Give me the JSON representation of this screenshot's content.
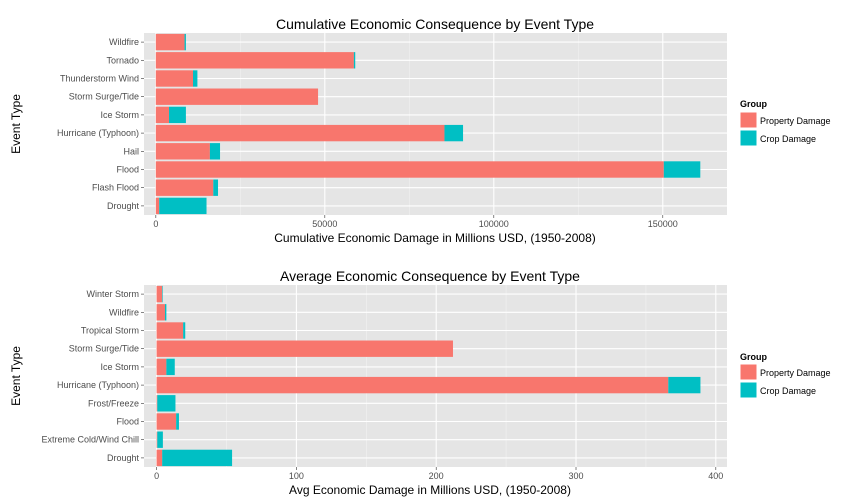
{
  "colors": {
    "panel_bg": "#e5e5e5",
    "grid_major": "#ffffff",
    "grid_minor": "#f2f2f2",
    "property": "#f8766d",
    "crop": "#00bfc4"
  },
  "legend": {
    "title": "Group",
    "items": [
      "Property Damage",
      "Crop Damage"
    ]
  },
  "chart_data": [
    {
      "type": "bar",
      "orientation": "horizontal",
      "stacked": true,
      "title": "Cumulative Economic Consequence by Event Type",
      "xlabel": "Cumulative Economic Damage in Millions USD, (1950-2008)",
      "ylabel": "Event Type",
      "xlim": [
        -3500,
        169000
      ],
      "xticks": [
        0,
        50000,
        100000,
        150000
      ],
      "xtick_labels": [
        "0",
        "50000",
        "100000",
        "150000"
      ],
      "legend_position": "right",
      "grid": true,
      "categories": [
        "Wildfire",
        "Tornado",
        "Thunderstorm Wind",
        "Storm Surge/Tide",
        "Ice Storm",
        "Hurricane (Typhoon)",
        "Hail",
        "Flood",
        "Flash Flood",
        "Drought"
      ],
      "series": [
        {
          "name": "Property Damage",
          "values": [
            8500,
            58600,
            11000,
            48000,
            3900,
            85400,
            16000,
            150300,
            17000,
            1000
          ]
        },
        {
          "name": "Crop Damage",
          "values": [
            400,
            400,
            1300,
            0,
            5000,
            5500,
            3000,
            10800,
            1400,
            14000
          ]
        }
      ]
    },
    {
      "type": "bar",
      "orientation": "horizontal",
      "stacked": true,
      "title": "Average Economic Consequence by Event Type",
      "xlabel": "Avg Economic Damage in Millions USD, (1950-2008)",
      "ylabel": "Event Type",
      "xlim": [
        -9,
        408
      ],
      "xticks": [
        0,
        100,
        200,
        300,
        400
      ],
      "xtick_labels": [
        "0",
        "100",
        "200",
        "300",
        "400"
      ],
      "legend_position": "right",
      "grid": true,
      "categories": [
        "Winter Storm",
        "Wildfire",
        "Tropical Storm",
        "Storm Surge/Tide",
        "Ice Storm",
        "Hurricane (Typhoon)",
        "Frost/Freeze",
        "Flood",
        "Extreme Cold/Wind Chill",
        "Drought"
      ],
      "series": [
        {
          "name": "Property Damage",
          "values": [
            4,
            6,
            19,
            212,
            7,
            366,
            0.5,
            14,
            0.5,
            4
          ]
        },
        {
          "name": "Crop Damage",
          "values": [
            0.4,
            1,
            1.5,
            0,
            6,
            23,
            13,
            2,
            4,
            50
          ]
        }
      ]
    }
  ]
}
